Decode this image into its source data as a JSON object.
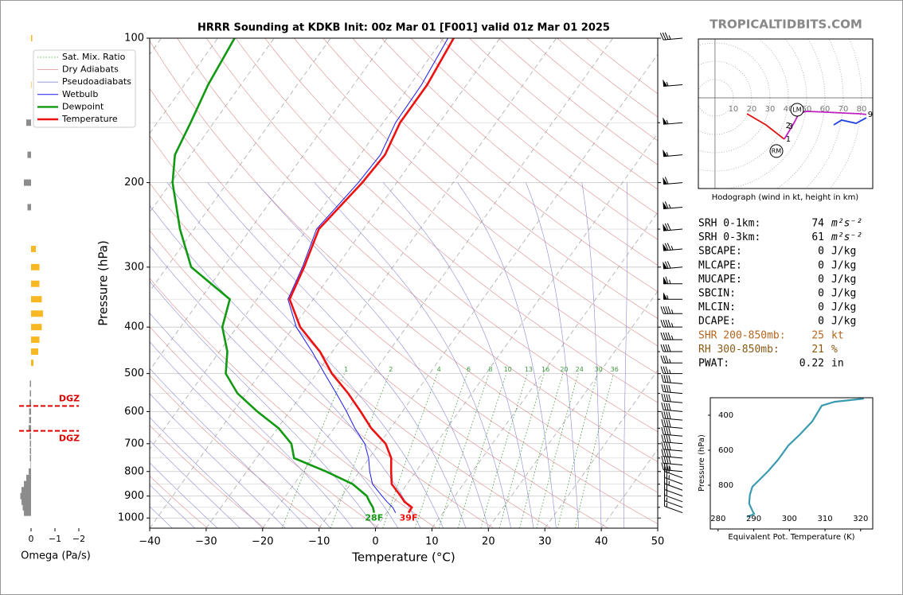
{
  "watermark": "TROPICALTIDBITS.COM",
  "chart_data": [
    {
      "type": "skewt",
      "title": "HRRR Sounding at KDKB Init: 00z Mar 01 [F001] valid 01z Mar 01 2025",
      "xlabel": "Temperature (°C)",
      "ylabel": "Pressure (hPa)",
      "log_y": true,
      "xlim": [
        -40,
        50
      ],
      "ylim": [
        1050,
        100
      ],
      "xticks": [
        {
          "value": -40,
          "label": "−40"
        },
        {
          "value": -30,
          "label": "−30"
        },
        {
          "value": -20,
          "label": "−20"
        },
        {
          "value": -10,
          "label": "−10"
        },
        0,
        10,
        20,
        30,
        40,
        50
      ],
      "yticks": [
        100,
        200,
        300,
        400,
        500,
        600,
        700,
        800,
        900,
        1000
      ],
      "minor_yticks": [
        150,
        250,
        350,
        450,
        550,
        650,
        750,
        850,
        950
      ],
      "reference_lines": [
        {
          "name": "Sat. Mix. Ratio",
          "color": "#3a9a3a"
        },
        {
          "name": "Dry Adiabats",
          "color": "#dd8c8c"
        },
        {
          "name": "Pseudoadiabats",
          "color": "#8a8ad6"
        }
      ],
      "mixing_ratio_labels": [
        1,
        2,
        4,
        6,
        8,
        10,
        13,
        16,
        20,
        24,
        30,
        36
      ],
      "pressure": [
        975,
        950,
        925,
        900,
        850,
        800,
        750,
        700,
        650,
        600,
        550,
        500,
        450,
        400,
        350,
        300,
        250,
        200,
        175,
        150,
        125,
        100
      ],
      "series": [
        {
          "name": "Wetbulb",
          "color": "#1a1aee",
          "values": [
            1.6,
            0.4,
            -1.3,
            -2.9,
            -6.1,
            -8.2,
            -10.1,
            -12.6,
            -16.3,
            -19.9,
            -24.0,
            -28.6,
            -33.6,
            -39.5,
            -44.5,
            -46.0,
            -48.3,
            -46.8,
            -46.4,
            -47.8,
            -48.0,
            -49.2
          ]
        },
        {
          "name": "Dewpoint",
          "color": "#119911",
          "values": [
            -2.2,
            -3.1,
            -4.4,
            -5.6,
            -9.6,
            -15.9,
            -23.3,
            -25.6,
            -29.8,
            -35.7,
            -41.5,
            -46.1,
            -48.6,
            -52.6,
            -54.8,
            -65.7,
            -72.5,
            -79.7,
            -82.8,
            -84.1,
            -85.8,
            -87.0
          ],
          "surface_label": "28F"
        },
        {
          "name": "Temperature",
          "color": "#ee1111",
          "values": [
            3.9,
            3.8,
            1.8,
            0.4,
            -2.7,
            -4.4,
            -6.1,
            -8.9,
            -13.4,
            -17.4,
            -21.9,
            -27.3,
            -32.2,
            -38.8,
            -44.2,
            -45.7,
            -47.9,
            -46.1,
            -45.6,
            -47.0,
            -47.0,
            -48.2
          ],
          "surface_label": "39F"
        }
      ],
      "wind": {
        "pressure": [
          100,
          125,
          150,
          175,
          200,
          225,
          250,
          275,
          300,
          325,
          350,
          375,
          400,
          425,
          450,
          475,
          500,
          525,
          550,
          575,
          600,
          625,
          650,
          675,
          700,
          725,
          750,
          775,
          800,
          825,
          850,
          875,
          900,
          925,
          950,
          975
        ],
        "speed": [
          35,
          55,
          55,
          55,
          60,
          65,
          70,
          75,
          70,
          65,
          55,
          45,
          45,
          45,
          40,
          35,
          35,
          40,
          40,
          40,
          40,
          40,
          40,
          40,
          40,
          40,
          40,
          40,
          35,
          30,
          25,
          25,
          20,
          20,
          15,
          15
        ],
        "direction": [
          265,
          265,
          265,
          265,
          265,
          265,
          265,
          265,
          265,
          270,
          270,
          270,
          270,
          270,
          270,
          270,
          270,
          275,
          275,
          275,
          275,
          275,
          275,
          275,
          275,
          275,
          275,
          275,
          275,
          290,
          290,
          290,
          290,
          290,
          290,
          290
        ]
      }
    },
    {
      "type": "bar",
      "xlabel": "Omega (Pa/s)",
      "xlim": [
        0.5,
        -2
      ],
      "xticks": [
        0,
        {
          "value": -1,
          "label": "−1"
        },
        {
          "value": -2,
          "label": "−2"
        }
      ],
      "negative_color": "#f7b824",
      "positive_color": "#8c8c8c",
      "pressure": [
        100,
        125,
        150,
        175,
        200,
        225,
        275,
        300,
        325,
        350,
        375,
        400,
        425,
        450,
        475,
        525,
        550,
        575,
        600,
        625,
        650,
        675,
        700,
        725,
        750,
        775,
        800,
        825,
        850,
        875,
        900,
        925,
        950,
        975
      ],
      "values": [
        -0.05,
        -0.02,
        0.2,
        0.15,
        0.3,
        0.15,
        -0.2,
        -0.35,
        -0.35,
        -0.45,
        -0.5,
        -0.45,
        -0.35,
        -0.3,
        -0.1,
        0.05,
        0.05,
        0.07,
        0.08,
        0.08,
        0.1,
        0.06,
        0.05,
        0.05,
        0.05,
        0.02,
        0.1,
        0.2,
        0.3,
        0.4,
        0.45,
        0.4,
        0.35,
        0.3
      ],
      "dgz": {
        "labels": [
          "DGZ",
          "DGZ"
        ],
        "pressure": [
          584,
          658
        ],
        "color": "#e00000"
      }
    },
    {
      "type": "hodograph",
      "title": "Hodograph (wind in kt, height in km)",
      "xlim": [
        -9.1,
        86.1
      ],
      "ylim": [
        -49.6,
        32.2
      ],
      "rings": [
        10,
        20,
        30,
        40,
        50,
        60,
        70,
        80
      ],
      "series": [
        {
          "color": "#e01010",
          "u": [
            17.4,
            27.8,
            37.8
          ],
          "v": [
            -8.7,
            -14.8,
            -22.6
          ],
          "heights": [
            0,
            0.5,
            1
          ]
        },
        {
          "color": "#c020c0",
          "u": [
            37.8,
            41.7,
            43.0,
            45.7,
            49.6,
            59.6,
            70.4,
            79.1,
            82.6
          ],
          "v": [
            -22.6,
            -16.1,
            -13.9,
            -8.7,
            -7.4,
            -7.8,
            -8.3,
            -8.7,
            -9.1
          ],
          "heights": [
            1,
            2,
            3,
            4,
            5,
            6,
            7,
            8,
            9
          ]
        },
        {
          "color": "#2040e0",
          "u": [
            82.6,
            77.0,
            69.1,
            64.8
          ],
          "v": [
            -10.9,
            -13.9,
            -12.2,
            -14.8
          ],
          "heights": [
            9,
            10,
            11,
            12
          ]
        }
      ],
      "labeled_heights": [
        1,
        2,
        3,
        9
      ],
      "storm_motion": [
        {
          "label": "LM",
          "u": 44.8,
          "v": -6.5
        },
        {
          "label": "RM",
          "u": 33.5,
          "v": -29.1
        }
      ]
    },
    {
      "type": "line",
      "xlabel": "Equivalent Pot. Temperature (K)",
      "ylabel": "Pressure (hPa)",
      "xlim": [
        277.8,
        323.4
      ],
      "ylim": [
        1050,
        300
      ],
      "xticks": [
        280,
        290,
        300,
        310,
        320
      ],
      "yticks": [
        400,
        600,
        800
      ],
      "color": "#3a9bb0",
      "pressure": [
        305,
        323,
        345,
        382,
        436,
        509,
        573,
        655,
        718,
        773,
        809,
        855,
        905,
        945,
        964,
        982
      ],
      "values": [
        320.9,
        312.7,
        309.1,
        308.0,
        306.4,
        303.0,
        299.7,
        296.8,
        294.1,
        291.4,
        289.6,
        288.9,
        288.7,
        289.6,
        290.1,
        288.1
      ]
    }
  ],
  "stats": {
    "rows": [
      {
        "label": "SRH 0-1km:",
        "value": 74,
        "unit": "m²s⁻²"
      },
      {
        "label": "SRH 0-3km:",
        "value": 61,
        "unit": "m²s⁻²"
      },
      {
        "label": "SBCAPE:",
        "value": 0,
        "unit": "J/kg"
      },
      {
        "label": "MLCAPE:",
        "value": 0,
        "unit": "J/kg"
      },
      {
        "label": "MUCAPE:",
        "value": 0,
        "unit": "J/kg"
      },
      {
        "label": "SBCIN:",
        "value": 0,
        "unit": "J/kg"
      },
      {
        "label": "MLCIN:",
        "value": 0,
        "unit": "J/kg"
      },
      {
        "label": "DCAPE:",
        "value": 0,
        "unit": "J/kg"
      },
      {
        "label": "SHR 200-850mb:",
        "value": 25,
        "unit": "kt",
        "color": "#b5651d"
      },
      {
        "label": "RH 300-850mb:",
        "value": 21,
        "unit": "%",
        "color": "#8b5a14"
      },
      {
        "label": "PWAT:",
        "value": 0.22,
        "unit": "in"
      }
    ]
  }
}
